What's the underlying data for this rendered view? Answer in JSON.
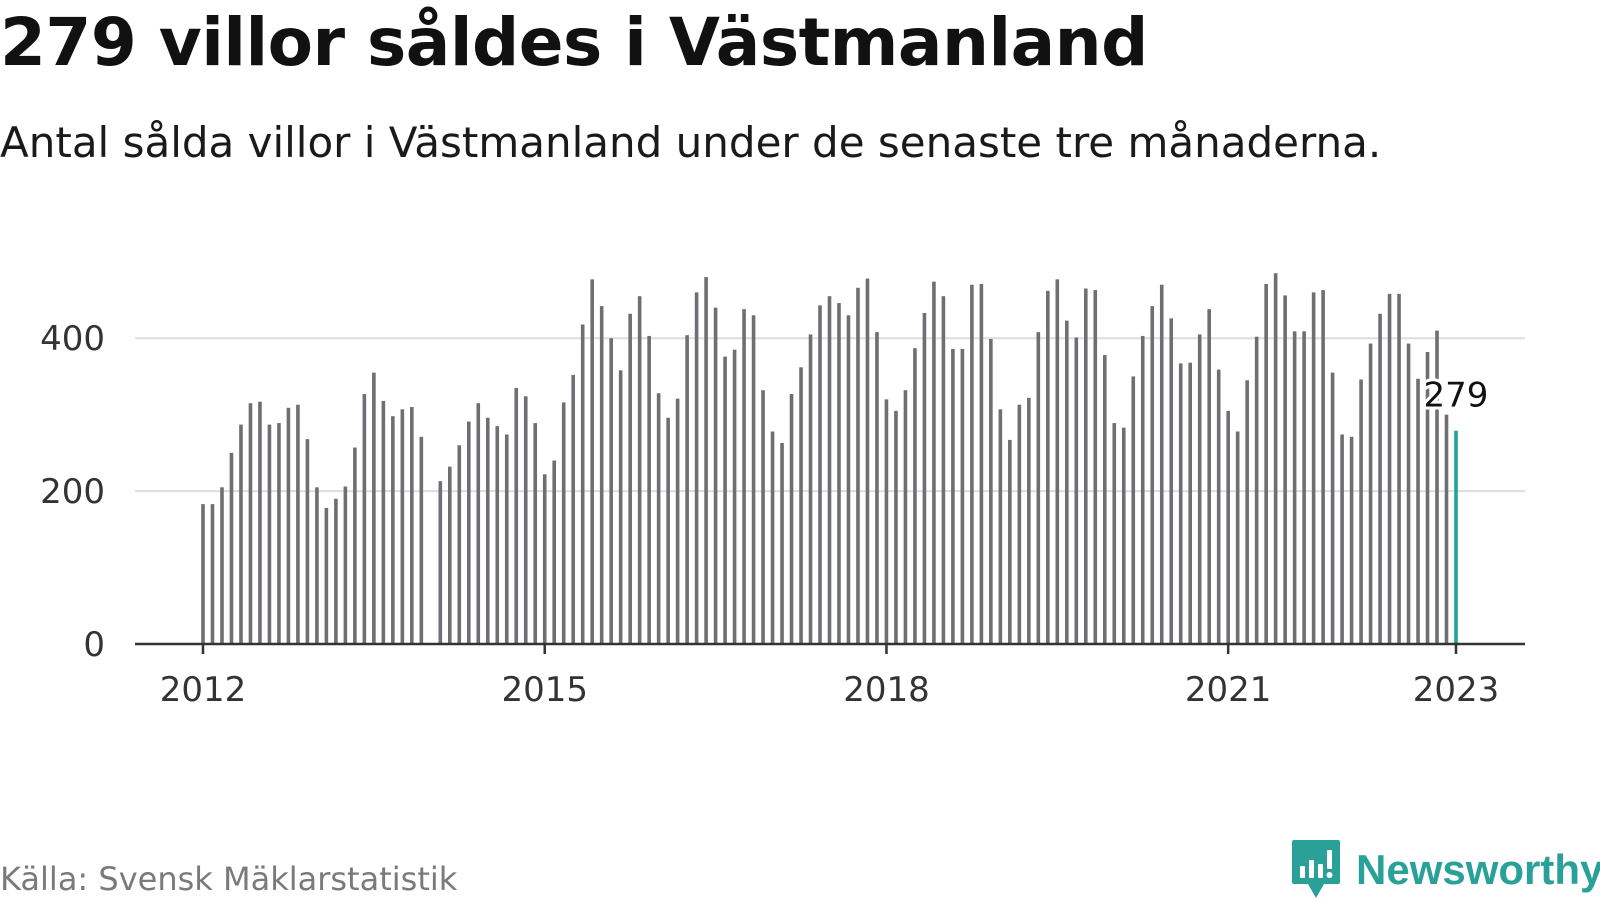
{
  "title": "279 villor såldes i Västmanland",
  "subtitle": "Antal sålda villor i Västmanland under de senaste tre månaderna.",
  "source": "Källa: Svensk Mäklarstatistik",
  "brand": {
    "name": "Newsworthy",
    "icon": "newsworthy-logo-icon",
    "color": "#2aa198"
  },
  "chart_data": {
    "type": "bar",
    "x_start": "2012-01",
    "x_end": "2023-01",
    "ylim": [
      0,
      500
    ],
    "yticks": [
      0,
      200,
      400
    ],
    "xticks": [
      "2012",
      "2015",
      "2018",
      "2021",
      "2023"
    ],
    "grid": true,
    "colors": {
      "bar": "#6e6e73",
      "highlight": "#1fa39a",
      "grid": "#dddddd",
      "axis": "#333333"
    },
    "highlight_label": "279",
    "values": [
      183,
      183,
      205,
      250,
      287,
      315,
      317,
      287,
      289,
      309,
      313,
      268,
      205,
      178,
      190,
      206,
      257,
      327,
      355,
      318,
      298,
      307,
      310,
      271,
      null,
      213,
      232,
      260,
      291,
      315,
      296,
      285,
      274,
      335,
      324,
      289,
      222,
      240,
      316,
      352,
      418,
      477,
      442,
      400,
      358,
      432,
      455,
      403,
      328,
      296,
      321,
      404,
      460,
      480,
      440,
      376,
      385,
      438,
      430,
      332,
      278,
      263,
      327,
      362,
      405,
      443,
      455,
      446,
      430,
      466,
      478,
      408,
      320,
      305,
      332,
      387,
      433,
      474,
      455,
      386,
      386,
      470,
      471,
      399,
      307,
      267,
      313,
      322,
      408,
      462,
      477,
      423,
      401,
      465,
      463,
      378,
      289,
      283,
      350,
      403,
      442,
      470,
      426,
      367,
      368,
      405,
      438,
      359,
      305,
      278,
      345,
      402,
      471,
      485,
      456,
      409,
      409,
      460,
      463,
      355,
      274,
      271,
      346,
      393,
      432,
      458,
      458,
      393,
      347,
      382,
      410,
      300,
      279
    ]
  }
}
